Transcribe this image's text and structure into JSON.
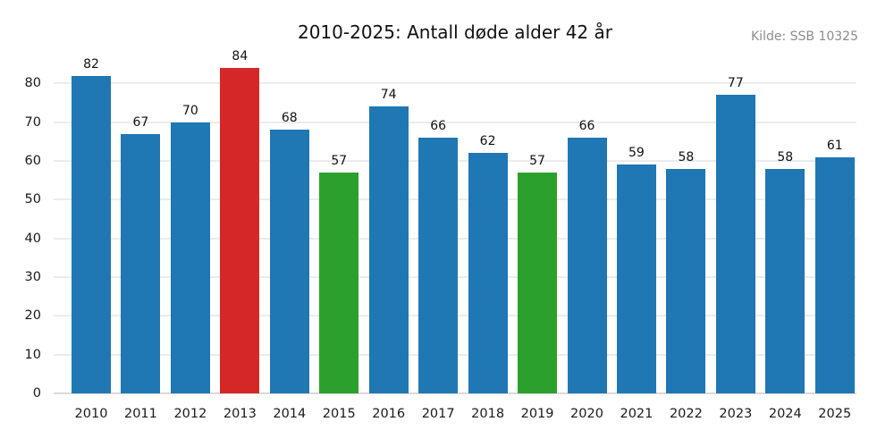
{
  "header": {
    "title": "2010-2025: Antall døde alder 42 år",
    "source": "Kilde: SSB 10325"
  },
  "chart_data": {
    "type": "bar",
    "title": "2010-2025: Antall døde alder 42 år",
    "source": "Kilde: SSB 10325",
    "categories": [
      "2010",
      "2011",
      "2012",
      "2013",
      "2014",
      "2015",
      "2016",
      "2017",
      "2018",
      "2019",
      "2020",
      "2021",
      "2022",
      "2023",
      "2024",
      "2025"
    ],
    "values": [
      82,
      67,
      70,
      84,
      68,
      57,
      74,
      66,
      62,
      57,
      66,
      59,
      58,
      77,
      58,
      61
    ],
    "bar_colors": [
      "#1f77b4",
      "#1f77b4",
      "#1f77b4",
      "#d62728",
      "#1f77b4",
      "#2ca02c",
      "#1f77b4",
      "#1f77b4",
      "#1f77b4",
      "#2ca02c",
      "#1f77b4",
      "#1f77b4",
      "#1f77b4",
      "#1f77b4",
      "#1f77b4",
      "#1f77b4"
    ],
    "value_labels": true,
    "xlabel": "",
    "ylabel": "",
    "yticks": [
      0,
      10,
      20,
      30,
      40,
      50,
      60,
      70,
      80
    ],
    "ylim": [
      0,
      90
    ],
    "grid": true,
    "legend": false,
    "colors": {
      "bar_default": "#1f77b4",
      "bar_max_highlight": "#d62728",
      "bar_min_highlight": "#2ca02c",
      "gridline": "#ececec",
      "baseline": "#d9d9d9",
      "tick_text": "#1a1a1a",
      "source_text": "#8c8c8c",
      "background": "#ffffff"
    }
  }
}
